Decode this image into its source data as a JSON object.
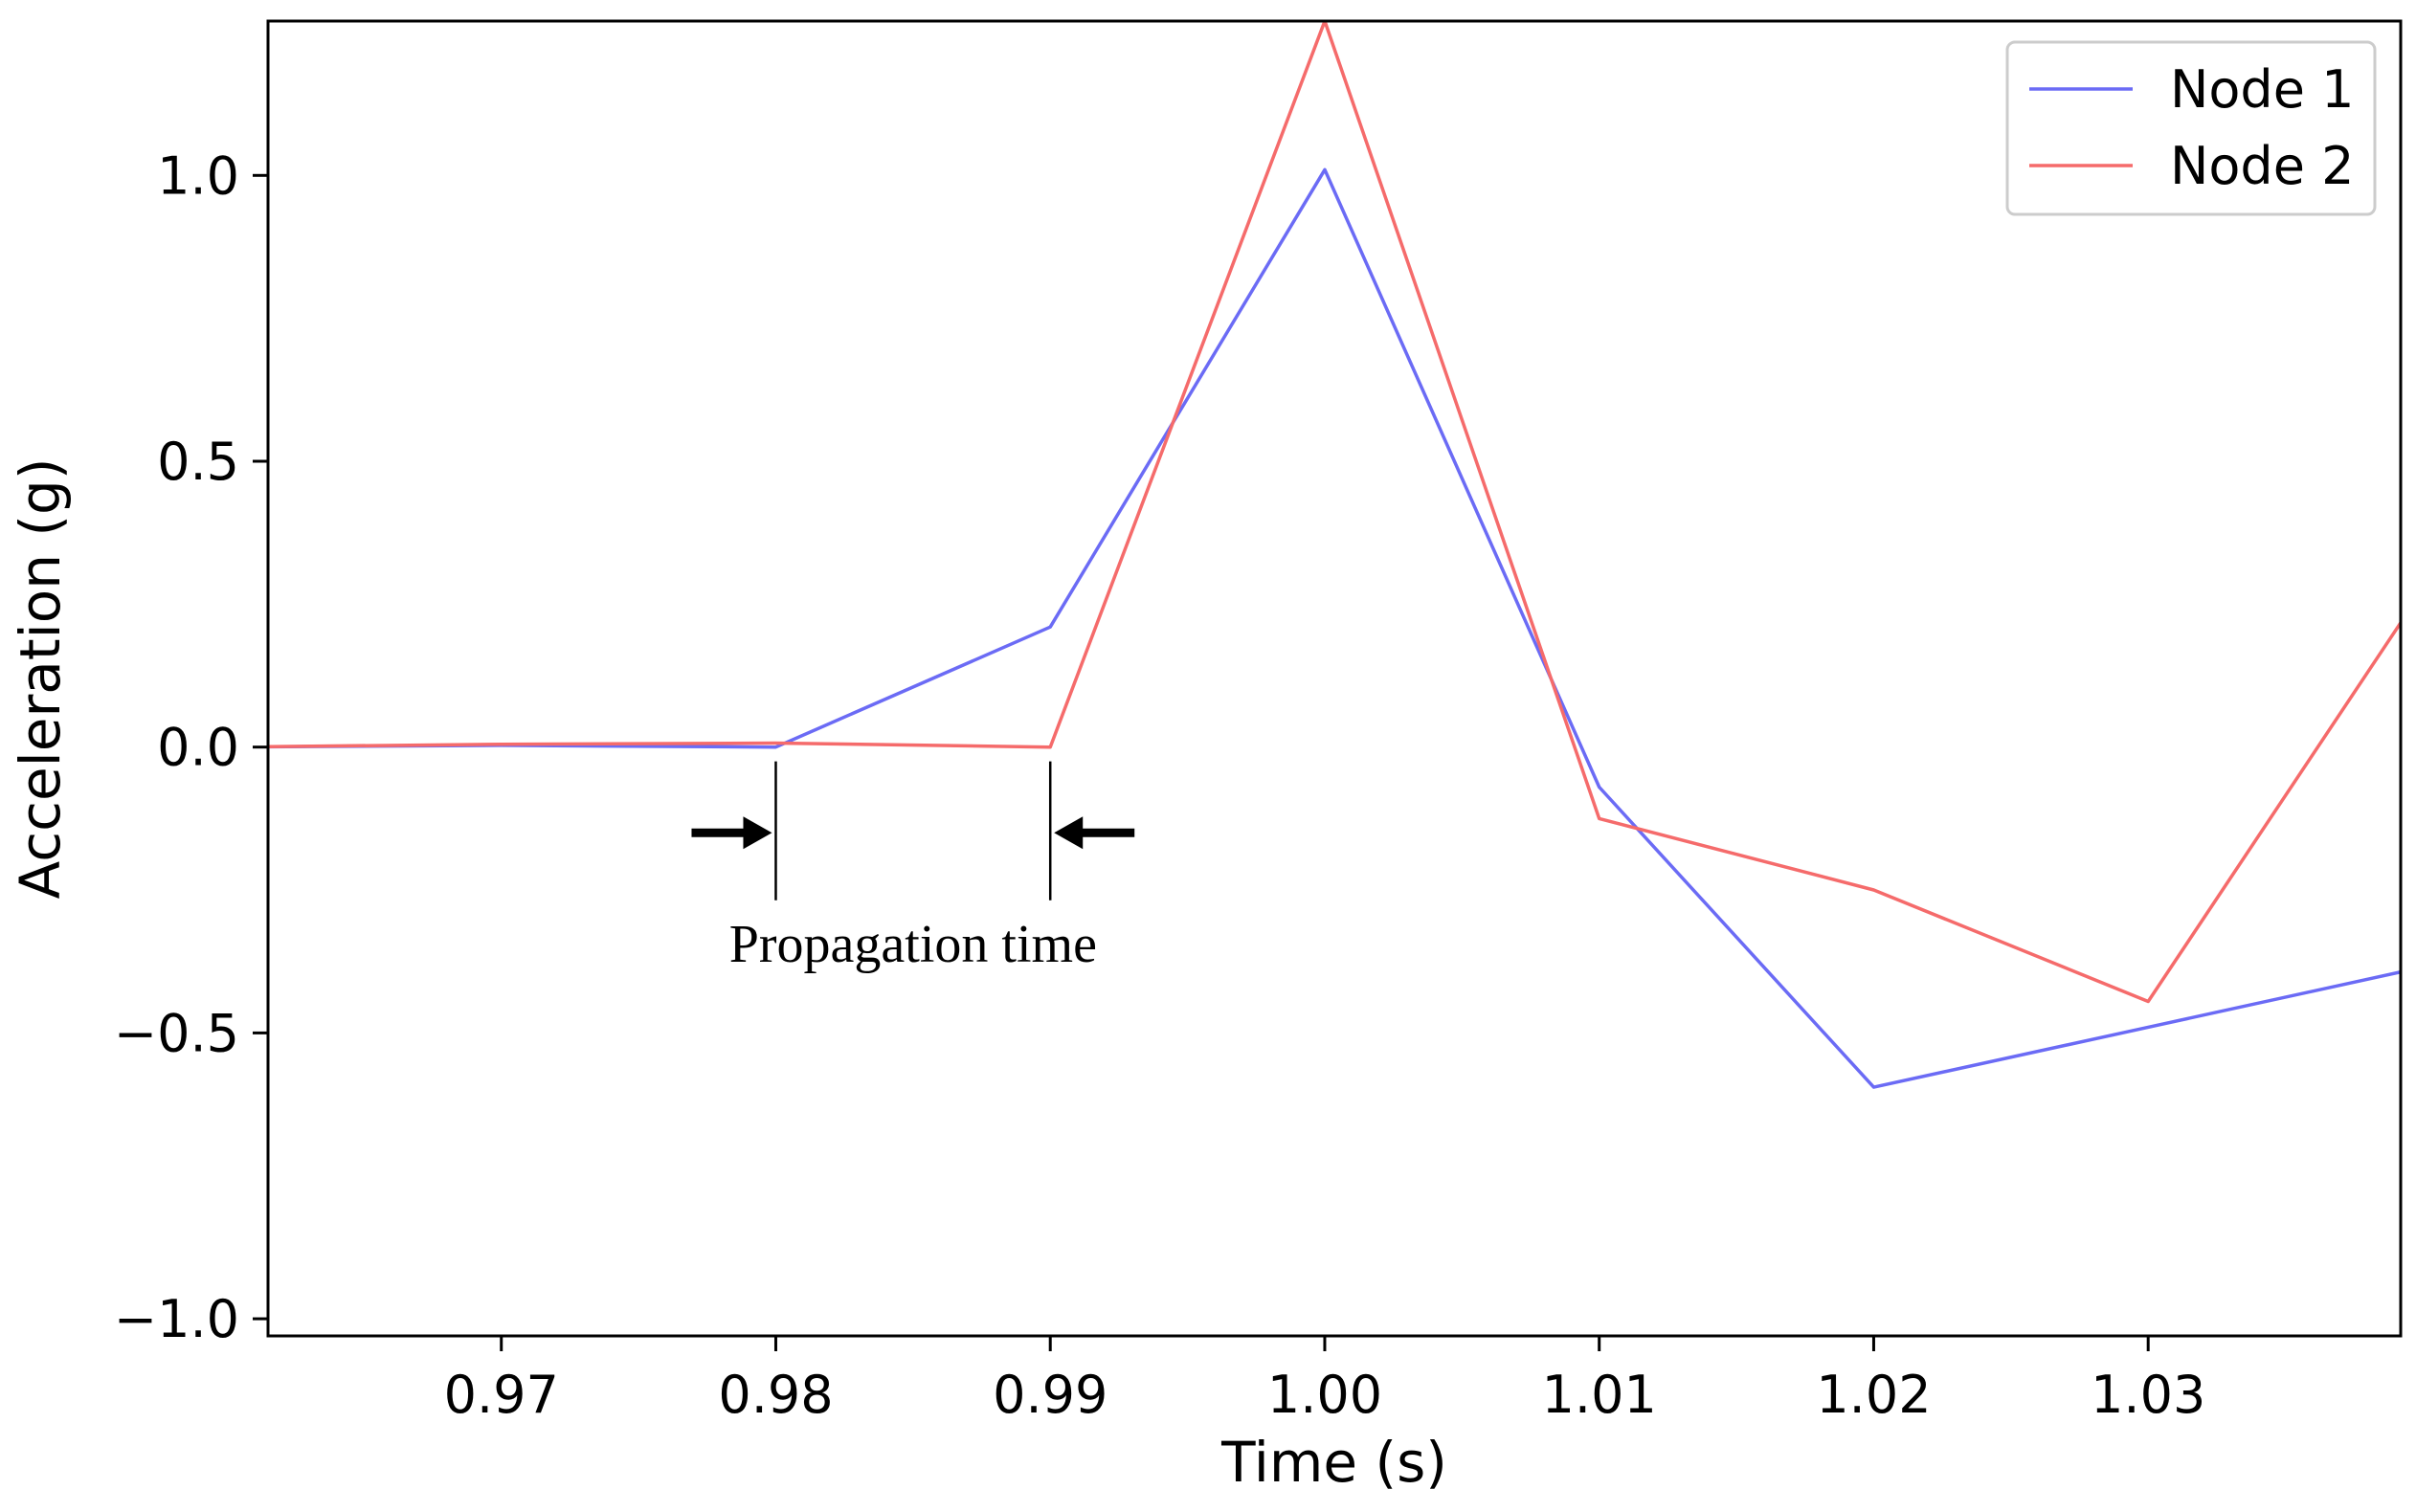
{
  "chart_data": {
    "type": "line",
    "title": "",
    "xlabel": "Time (s)",
    "ylabel": "Acceleration (g)",
    "xlim": [
      0.9615,
      1.0392
    ],
    "ylim": [
      -1.03,
      1.27
    ],
    "grid": false,
    "x": [
      0.96,
      0.97,
      0.98,
      0.99,
      1.0,
      1.01,
      1.02,
      1.03,
      1.04
    ],
    "x_ticks": [
      0.97,
      0.98,
      0.99,
      1.0,
      1.01,
      1.02,
      1.03
    ],
    "x_tick_labels": [
      "0.97",
      "0.98",
      "0.99",
      "1.00",
      "1.01",
      "1.02",
      "1.03"
    ],
    "y_ticks": [
      1.0,
      0.5,
      0.0,
      -0.5,
      -1.0
    ],
    "y_tick_labels": [
      "1.0",
      "0.5",
      "0.0",
      "−0.5",
      "−1.0"
    ],
    "series": [
      {
        "name": "Node 1",
        "color": "#6b6bf5",
        "values": [
          0.0,
          0.003,
          0.0,
          0.21,
          1.01,
          -0.07,
          -0.595,
          -0.49,
          -0.385
        ]
      },
      {
        "name": "Node 2",
        "color": "#f56b6b",
        "values": [
          0.0,
          0.005,
          0.007,
          0.0,
          1.27,
          -0.125,
          -0.25,
          -0.445,
          0.275
        ]
      }
    ],
    "legend": {
      "position": "top-right",
      "entries": [
        "Node 1",
        "Node 2"
      ]
    },
    "annotations": [
      {
        "text": "Propagation time",
        "from_x": 0.98,
        "to_x": 0.99,
        "level_y": -0.15
      }
    ]
  }
}
